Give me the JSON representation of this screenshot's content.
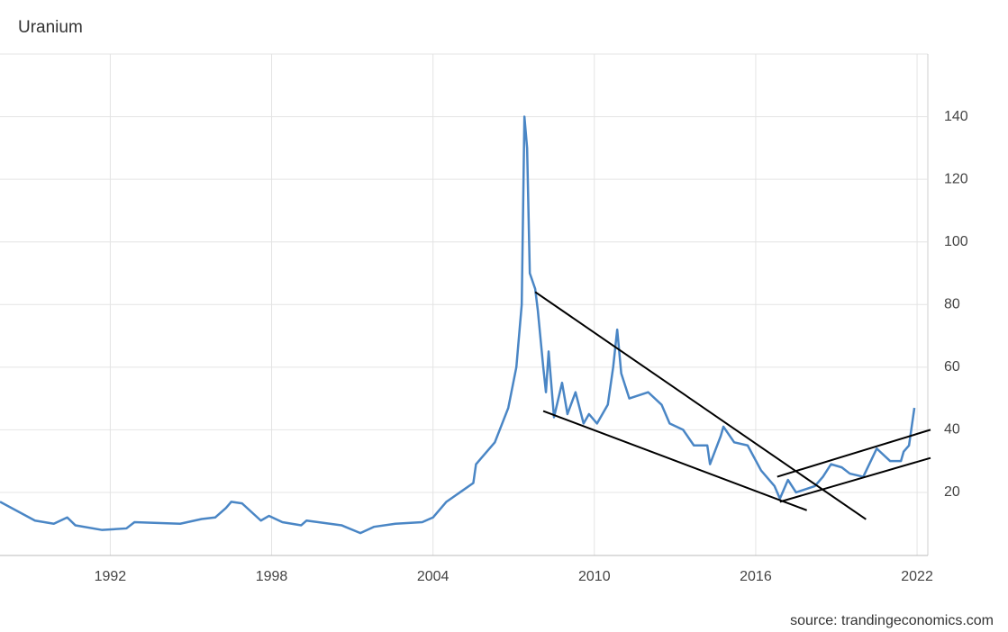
{
  "chart_data": {
    "type": "line",
    "title": "Uranium",
    "source": "source: trandingeconomics.com",
    "x": [
      1987.9,
      1989.2,
      1989.9,
      1990.4,
      1990.7,
      1991.7,
      1992.6,
      1992.9,
      1994.6,
      1995.4,
      1995.9,
      1996.3,
      1996.5,
      1996.9,
      1997.6,
      1997.9,
      1998.4,
      1999.1,
      1999.3,
      2000.6,
      2001.3,
      2001.8,
      2002.6,
      2003.6,
      2004.0,
      2004.5,
      2005.0,
      2005.5,
      2005.6,
      2006.3,
      2006.8,
      2007.1,
      2007.3,
      2007.4,
      2007.5,
      2007.6,
      2007.8,
      2007.9,
      2008.1,
      2008.2,
      2008.3,
      2008.5,
      2008.8,
      2009.0,
      2009.3,
      2009.6,
      2009.8,
      2010.1,
      2010.5,
      2010.7,
      2010.85,
      2011.0,
      2011.3,
      2012.0,
      2012.5,
      2012.8,
      2013.3,
      2013.7,
      2014.2,
      2014.3,
      2014.7,
      2014.8,
      2015.2,
      2015.7,
      2016.2,
      2016.7,
      2016.9,
      2017.2,
      2017.5,
      2018.2,
      2018.5,
      2018.8,
      2019.2,
      2019.5,
      2020.0,
      2020.5,
      2021.0,
      2021.4,
      2021.5,
      2021.7,
      2021.9
    ],
    "series": [
      {
        "name": "Uranium",
        "color": "#4a86c5",
        "values": [
          17,
          11,
          10,
          12,
          9.5,
          8,
          8.5,
          10.5,
          10,
          11.5,
          12,
          15,
          17,
          16.5,
          11,
          12.5,
          10.5,
          9.5,
          11,
          9.5,
          7,
          9,
          10,
          10.5,
          12,
          17,
          20,
          23,
          29,
          36,
          47,
          60,
          80,
          140,
          130,
          90,
          85,
          78,
          60,
          52,
          65,
          44,
          55,
          45,
          52,
          42,
          45,
          42,
          48,
          60,
          72,
          58,
          50,
          52,
          48,
          42,
          40,
          35,
          35,
          29,
          38,
          41,
          36,
          35,
          27,
          22,
          18,
          24,
          20,
          22,
          25,
          29,
          28,
          26,
          25,
          34,
          30,
          30,
          33,
          35,
          47
        ]
      }
    ],
    "trend_lines": [
      {
        "color": "#000000",
        "x": [
          2007.8,
          2020.1
        ],
        "y": [
          84,
          11.4
        ]
      },
      {
        "color": "#000000",
        "x": [
          2008.1,
          2017.9
        ],
        "y": [
          46,
          14.3
        ]
      },
      {
        "color": "#000000",
        "x": [
          2016.8,
          2022.5
        ],
        "y": [
          25,
          40
        ]
      },
      {
        "color": "#000000",
        "x": [
          2016.9,
          2022.5
        ],
        "y": [
          17,
          31
        ]
      }
    ],
    "xlim": [
      1987.9,
      2022.4
    ],
    "xticks": [
      1992,
      1998,
      2004,
      2010,
      2016,
      2022
    ],
    "ylim": [
      0,
      160
    ],
    "yticks": [
      20,
      40,
      60,
      80,
      100,
      120,
      140
    ],
    "grid": true
  }
}
